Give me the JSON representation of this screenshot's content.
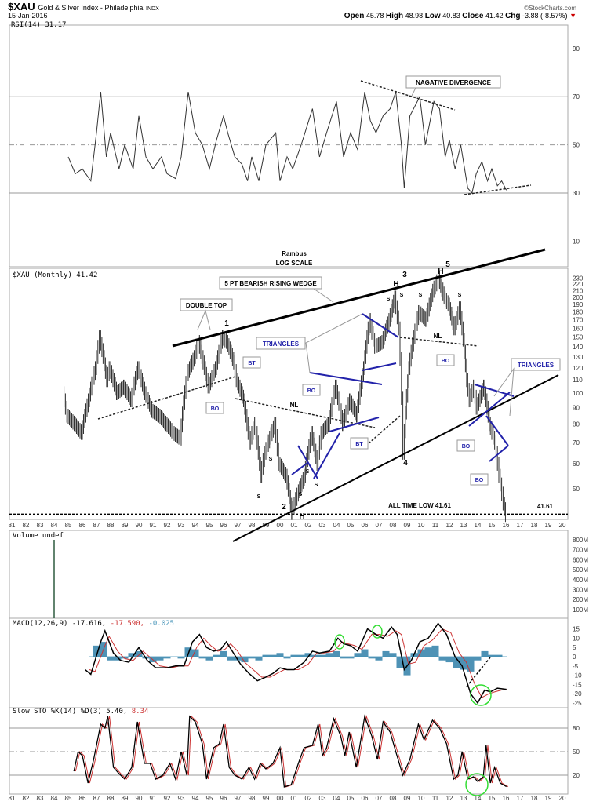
{
  "header": {
    "symbol": "$XAU",
    "name": "Gold & Silver Index - Philadelphia",
    "exchange": "INDX",
    "date": "15-Jan-2016",
    "brand": "©StockCharts.com",
    "open_label": "Open",
    "open": "45.78",
    "high_label": "High",
    "high": "48.98",
    "low_label": "Low",
    "low": "40.83",
    "close_label": "Close",
    "close": "41.42",
    "chg_label": "Chg",
    "chg": "-3.88 (-8.57%)",
    "chg_arrow": "▼"
  },
  "colors": {
    "price": "#333333",
    "signal": "#cc3333",
    "histogram": "#2f7fa8",
    "annotation_blue": "#2222aa",
    "circle": "#33dd33",
    "hist_legend": "#3d8fb5"
  },
  "chart_data": [
    {
      "type": "line",
      "panel": "RSI",
      "legend": "RSI(14) 31.17",
      "ylim": [
        0,
        100
      ],
      "yticks": [
        90,
        70,
        50,
        30,
        10
      ],
      "reference_lines": [
        70,
        50,
        30
      ],
      "x": [
        1985,
        1985.5,
        1986,
        1986.6,
        1987,
        1987.3,
        1987.7,
        1988,
        1988.6,
        1989,
        1989.6,
        1990,
        1990.5,
        1991,
        1991.6,
        1992,
        1992.6,
        1993,
        1993.5,
        1994,
        1994.5,
        1995,
        1995.5,
        1996,
        1996.3,
        1996.8,
        1997.3,
        1997.7,
        1998,
        1998.5,
        1999,
        1999.7,
        2000,
        2000.5,
        2000.9,
        2001.5,
        2002.3,
        2002.8,
        2003.3,
        2004,
        2004.5,
        2005,
        2005.5,
        2006,
        2006.4,
        2006.8,
        2007.3,
        2007.8,
        2008.2,
        2008.6,
        2008.8,
        2009.2,
        2009.9,
        2010.3,
        2010.9,
        2011.3,
        2011.7,
        2012,
        2012.4,
        2012.8,
        2013.3,
        2013.6,
        2013.9,
        2014.3,
        2014.7,
        2015,
        2015.4,
        2015.7,
        2016.04
      ],
      "y": [
        45,
        38,
        40,
        35,
        55,
        72,
        45,
        55,
        40,
        50,
        40,
        62,
        45,
        40,
        45,
        38,
        36,
        45,
        72,
        55,
        50,
        40,
        52,
        62,
        55,
        45,
        42,
        35,
        45,
        35,
        50,
        55,
        35,
        45,
        40,
        50,
        65,
        45,
        55,
        68,
        45,
        55,
        48,
        72,
        60,
        55,
        62,
        65,
        72,
        50,
        32,
        62,
        70,
        50,
        68,
        65,
        45,
        52,
        40,
        50,
        32,
        30,
        38,
        43,
        35,
        40,
        33,
        35,
        31.17
      ]
    },
    {
      "type": "line",
      "panel": "Price",
      "legend": "$XAU (Monthly) 41.42",
      "scale": "log",
      "ylim": [
        41,
        235
      ],
      "yticks": [
        230,
        220,
        210,
        200,
        190,
        180,
        170,
        160,
        150,
        140,
        130,
        120,
        110,
        100,
        90,
        80,
        70,
        60,
        50
      ],
      "reference_lines": [
        41.61
      ],
      "x": [
        1984.7,
        1985,
        1985.5,
        1986,
        1986.5,
        1987,
        1987.3,
        1987.8,
        1988,
        1988.5,
        1989,
        1989.5,
        1990,
        1990.5,
        1991,
        1991.5,
        1992,
        1992.5,
        1993,
        1993.5,
        1994,
        1994.3,
        1994.8,
        1995,
        1995.5,
        1996,
        1996.3,
        1996.8,
        1997,
        1997.5,
        1997.9,
        1998.3,
        1998.7,
        1999,
        1999.7,
        2000,
        2000.5,
        2000.9,
        2001.3,
        2001.8,
        2002.3,
        2002.7,
        2003,
        2003.5,
        2004,
        2004.5,
        2005,
        2005.5,
        2006,
        2006.4,
        2006.8,
        2007.3,
        2007.8,
        2008.2,
        2008.5,
        2008.8,
        2009.2,
        2009.9,
        2010.4,
        2010.9,
        2011.3,
        2011.7,
        2012,
        2012.4,
        2012.8,
        2013.3,
        2013.5,
        2013.8,
        2014,
        2014.5,
        2014.9,
        2015.3,
        2015.6,
        2015.9,
        2016.04
      ],
      "y": [
        100,
        85,
        80,
        75,
        95,
        120,
        150,
        110,
        120,
        100,
        105,
        95,
        120,
        100,
        88,
        85,
        80,
        75,
        72,
        115,
        130,
        145,
        115,
        105,
        120,
        150,
        145,
        125,
        110,
        95,
        70,
        80,
        55,
        65,
        80,
        60,
        55,
        42,
        48,
        55,
        75,
        60,
        75,
        80,
        105,
        80,
        95,
        85,
        120,
        170,
        140,
        145,
        170,
        200,
        160,
        65,
        120,
        180,
        170,
        210,
        230,
        200,
        190,
        160,
        185,
        110,
        95,
        105,
        90,
        105,
        80,
        70,
        55,
        45,
        41.42
      ]
    },
    {
      "type": "bar",
      "panel": "Volume",
      "legend": "Volume undef",
      "yticks": [
        "800M",
        "700M",
        "600M",
        "500M",
        "400M",
        "300M",
        "200M",
        "100M"
      ]
    },
    {
      "type": "line",
      "panel": "MACD",
      "legend_prefix": "MACD(12,26,9)",
      "macd_value": "-17.616,",
      "signal_value": "-17.590,",
      "hist_value": "-0.025",
      "yticks": [
        15,
        10,
        5,
        0,
        -5,
        -10,
        -15,
        -20,
        -25
      ],
      "macd_x": [
        1986.2,
        1986.6,
        1987.3,
        1987.6,
        1988.2,
        1988.7,
        1989.3,
        1990,
        1990.6,
        1991.2,
        1992,
        1992.6,
        1993.2,
        1993.8,
        1994.3,
        1994.8,
        1995.3,
        1995.8,
        1996.2,
        1996.7,
        1997.2,
        1997.8,
        1998.4,
        1999,
        1999.5,
        2000,
        2000.5,
        2001,
        2001.7,
        2002.3,
        2002.8,
        2003.5,
        2004.1,
        2004.5,
        2005,
        2005.5,
        2006.2,
        2006.8,
        2007.3,
        2007.9,
        2008.3,
        2008.8,
        2009.3,
        2009.9,
        2010.5,
        2011.2,
        2011.8,
        2012.4,
        2012.9,
        2013.5,
        2014,
        2014.5,
        2014.9,
        2015.4,
        2016.04
      ],
      "macd_y": [
        -7,
        -9.5,
        8,
        14,
        2,
        -2,
        -3,
        5,
        -2,
        -6,
        -6,
        -5,
        -5,
        8,
        12,
        5,
        3,
        4,
        8,
        2,
        -4,
        -9,
        -13,
        -11,
        -9,
        -6,
        -7,
        -7,
        -3,
        3,
        2,
        3,
        10,
        7,
        6,
        3,
        15,
        12,
        10,
        16,
        12,
        -7,
        -2,
        8,
        10,
        18,
        12,
        0,
        -5,
        -20,
        -25,
        -18,
        -19,
        -17,
        -17.616
      ],
      "signal_x": [
        1986.5,
        1986.9,
        1987.6,
        1987.9,
        1988.5,
        1989,
        1989.6,
        1990.3,
        1990.9,
        1991.5,
        1992.3,
        1992.9,
        1993.5,
        1994.1,
        1994.6,
        1995.1,
        1995.6,
        1996.1,
        1996.5,
        1997,
        1997.5,
        1998.1,
        1998.7,
        1999.3,
        1999.8,
        2000.3,
        2000.8,
        2001.3,
        2002,
        2002.6,
        2003.1,
        2003.8,
        2004.4,
        2004.8,
        2005.3,
        2005.8,
        2006.5,
        2007.1,
        2007.6,
        2008.2,
        2008.6,
        2009.1,
        2009.6,
        2010.2,
        2010.8,
        2011.5,
        2012.1,
        2012.7,
        2013.2,
        2013.8,
        2014.3,
        2014.8,
        2015.2,
        2015.7,
        2016.04
      ],
      "signal_y": [
        -7,
        -8,
        6,
        11,
        3,
        -1,
        -2,
        3,
        -1,
        -5,
        -6,
        -5,
        -5,
        5,
        10,
        6,
        3,
        4,
        7,
        3,
        -3,
        -7,
        -11,
        -11,
        -9,
        -7,
        -7,
        -7,
        -4,
        2,
        2,
        3,
        8,
        7,
        6,
        4,
        12,
        12,
        11,
        14,
        12,
        -4,
        -3,
        6,
        9,
        15,
        13,
        2,
        -3,
        -15,
        -22,
        -20,
        -19,
        -18,
        -17.59
      ],
      "hist_x": [
        1986.5,
        1987,
        1987.5,
        1988,
        1988.5,
        1989,
        1989.5,
        1990,
        1990.5,
        1991,
        1991.5,
        1992,
        1992.5,
        1993,
        1993.5,
        1994,
        1994.5,
        1995,
        1995.5,
        1996,
        1996.5,
        1997,
        1997.5,
        1998,
        1998.5,
        1999,
        1999.5,
        2000,
        2000.5,
        2001,
        2001.5,
        2002,
        2002.5,
        2003,
        2003.5,
        2004,
        2004.5,
        2005,
        2005.5,
        2006,
        2006.5,
        2007,
        2007.5,
        2008,
        2008.5,
        2009,
        2009.5,
        2010,
        2010.5,
        2011,
        2011.5,
        2012,
        2012.5,
        2013,
        2013.5,
        2014,
        2014.5,
        2015,
        2015.5,
        2016
      ],
      "hist_y": [
        0,
        6,
        8,
        -2,
        -2,
        -1,
        2,
        3,
        -1,
        -3,
        -2,
        -1,
        0,
        -1,
        5,
        4,
        -1,
        -2,
        1,
        3,
        -2,
        -2,
        -3,
        -1,
        -2,
        1,
        1,
        2,
        -1,
        1,
        1,
        2,
        1,
        1,
        2,
        3,
        -1,
        -1,
        2,
        4,
        -1,
        -2,
        3,
        2,
        -6,
        -10,
        2,
        4,
        5,
        6,
        -2,
        -3,
        -6,
        -7,
        -8,
        -2,
        3,
        1,
        1,
        0
      ]
    },
    {
      "type": "line",
      "panel": "Slow STO",
      "legend_prefix": "Slow STO %K(14) %D(3)",
      "k_value": "5.40,",
      "d_value": "8.34",
      "ylim": [
        0,
        100
      ],
      "yticks": [
        80,
        50,
        20
      ],
      "reference_lines": [
        80,
        50,
        20
      ],
      "x": [
        1985.4,
        1985.7,
        1986,
        1986.4,
        1986.8,
        1987.3,
        1987.6,
        1987.8,
        1988.2,
        1988.6,
        1989,
        1989.5,
        1989.9,
        1990.4,
        1990.8,
        1991.2,
        1991.7,
        1992.2,
        1992.6,
        1993,
        1993.4,
        1993.6,
        1994,
        1994.5,
        1994.8,
        1995.3,
        1995.7,
        1996,
        1996.4,
        1996.8,
        1997.3,
        1997.8,
        1998.2,
        1998.6,
        1999,
        1999.5,
        2000,
        2000.3,
        2000.8,
        2001.3,
        2001.7,
        2002.3,
        2002.7,
        2003,
        2003.3,
        2003.8,
        2004.3,
        2004.6,
        2004.9,
        2005.4,
        2006,
        2006.5,
        2006.9,
        2007.3,
        2007.8,
        2008.2,
        2008.7,
        2009.2,
        2009.8,
        2010.2,
        2010.8,
        2011.3,
        2011.8,
        2012.3,
        2012.6,
        2012.9,
        2013.3,
        2013.7,
        2014,
        2014.4,
        2014.6,
        2014.9,
        2015.2,
        2015.6,
        2016.04
      ],
      "k": [
        25,
        50,
        45,
        10,
        40,
        85,
        80,
        95,
        30,
        22,
        15,
        30,
        88,
        35,
        35,
        15,
        20,
        35,
        15,
        50,
        20,
        95,
        88,
        60,
        15,
        55,
        60,
        85,
        30,
        20,
        15,
        30,
        15,
        35,
        28,
        35,
        55,
        5,
        8,
        35,
        55,
        58,
        85,
        45,
        55,
        92,
        70,
        45,
        75,
        30,
        95,
        70,
        40,
        88,
        75,
        50,
        20,
        40,
        85,
        65,
        90,
        80,
        60,
        15,
        20,
        50,
        15,
        18,
        12,
        18,
        58,
        10,
        30,
        10,
        5.4
      ]
    }
  ],
  "xaxis": {
    "labels": [
      "81",
      "82",
      "83",
      "84",
      "85",
      "86",
      "87",
      "88",
      "89",
      "90",
      "91",
      "92",
      "93",
      "94",
      "95",
      "96",
      "97",
      "98",
      "99",
      "00",
      "01",
      "02",
      "03",
      "04",
      "05",
      "06",
      "07",
      "08",
      "09",
      "10",
      "11",
      "12",
      "13",
      "14",
      "15",
      "16",
      "17",
      "18",
      "19",
      "20"
    ]
  },
  "annotations": {
    "rambus": "Rambus",
    "log_scale": "LOG SCALE",
    "wedge": "5 PT BEARISH RISING WEDGE",
    "double_top": "DOUBLE TOP",
    "triangles_1": "TRIANGLES",
    "triangles_2": "TRIANGLES",
    "neg_div": "NAGATIVE DIVERGENCE",
    "all_time_low": "ALL TIME LOW 41.61",
    "low_value": "41.61",
    "points": [
      "1",
      "2",
      "3",
      "4",
      "5"
    ],
    "heads": [
      "H",
      "H",
      "H"
    ],
    "shoulders": [
      "S",
      "S",
      "S",
      "S",
      "S",
      "S",
      "S",
      "S",
      "S"
    ],
    "bo": [
      "BO",
      "BO",
      "BO",
      "BO",
      "BO"
    ],
    "bt": [
      "BT",
      "BT"
    ],
    "nl": [
      "NL",
      "NL"
    ]
  }
}
